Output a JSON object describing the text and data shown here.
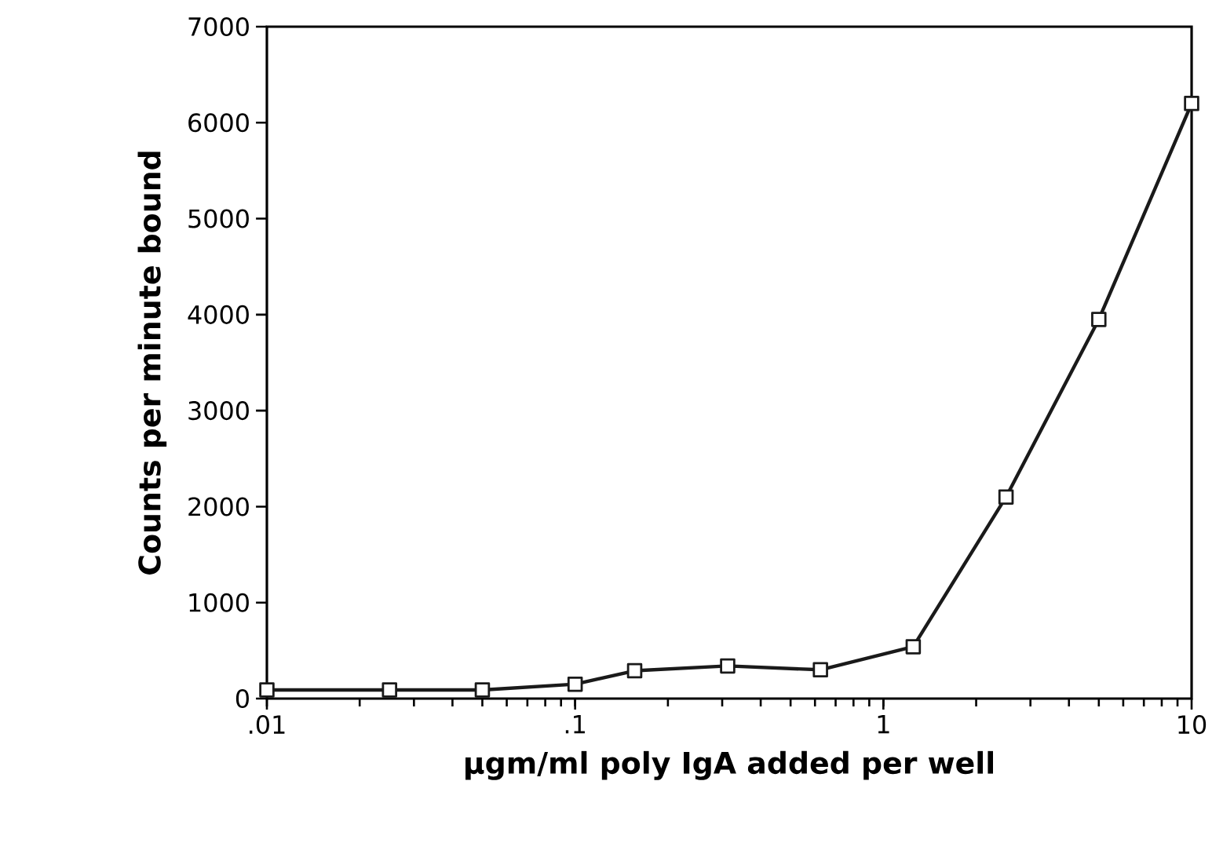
{
  "chart_data": {
    "type": "line",
    "xlabel": "µgm/ml poly IgA added per well",
    "ylabel": "Counts per minute bound",
    "log": "x",
    "marker": "square",
    "line_style": "solid",
    "xlim": [
      0.01,
      10
    ],
    "ylim": [
      0,
      7000
    ],
    "xticks": [
      {
        "value": 0.01,
        "label": ".01"
      },
      {
        "value": 0.1,
        "label": ".1"
      },
      1,
      10
    ],
    "yticks": [
      0,
      1000,
      2000,
      3000,
      4000,
      5000,
      6000,
      7000
    ],
    "series": [
      {
        "color": "#1a1a1a",
        "x": [
          0.01,
          0.025,
          0.05,
          0.1,
          0.156,
          0.3125,
          0.625,
          1.25,
          2.5,
          5,
          10
        ],
        "values": [
          90,
          90,
          90,
          150,
          290,
          340,
          300,
          540,
          2100,
          3950,
          6200
        ]
      }
    ]
  }
}
